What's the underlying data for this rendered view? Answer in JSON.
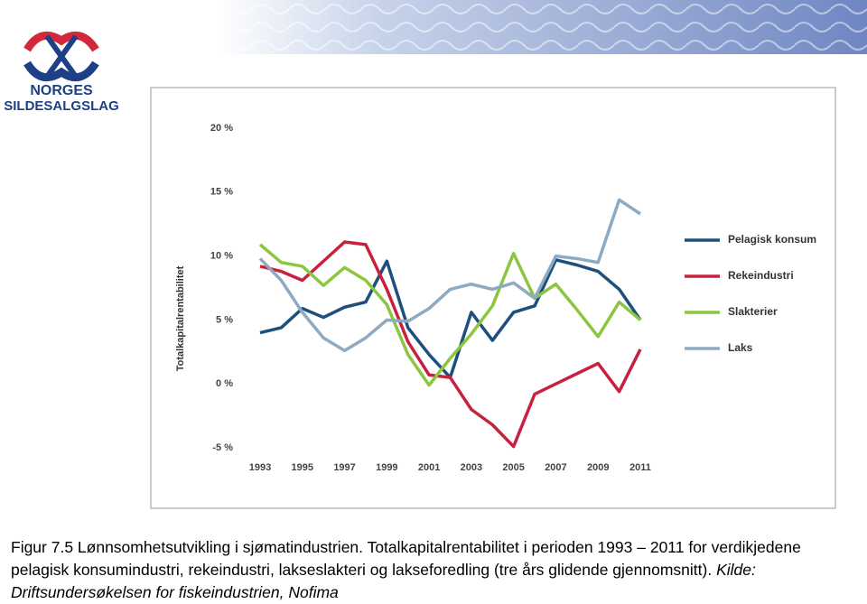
{
  "logo": {
    "line1": "NORGES",
    "line2": "SILDESALGSLAG"
  },
  "chart_data": {
    "type": "line",
    "y_label": "Totalkapitalrentabilitet",
    "x": [
      1993,
      1994,
      1995,
      1996,
      1997,
      1998,
      1999,
      2000,
      2001,
      2002,
      2003,
      2004,
      2005,
      2006,
      2007,
      2008,
      2009,
      2010,
      2011
    ],
    "xlim": [
      1993,
      2011
    ],
    "xticks": [
      1993,
      1995,
      1997,
      1999,
      2001,
      2003,
      2005,
      2007,
      2009,
      2011
    ],
    "ylim": [
      -5,
      20
    ],
    "yticks": [
      {
        "value": -5,
        "label": "-5 %"
      },
      {
        "value": 0,
        "label": "0 %"
      },
      {
        "value": 5,
        "label": "5 %"
      },
      {
        "value": 10,
        "label": "10 %"
      },
      {
        "value": 15,
        "label": "15 %"
      },
      {
        "value": 20,
        "label": "20 %"
      }
    ],
    "grid": false,
    "legend": "right",
    "series": [
      {
        "name": "Pelagisk konsum",
        "color": "#1d4f7c",
        "values": [
          4.0,
          4.4,
          5.9,
          5.2,
          6.0,
          6.4,
          9.6,
          4.4,
          2.3,
          0.5,
          5.6,
          3.4,
          5.6,
          6.1,
          9.7,
          9.3,
          8.8,
          7.4,
          5.0
        ]
      },
      {
        "name": "Rekeindustri",
        "color": "#c8213f",
        "values": [
          9.2,
          8.8,
          8.1,
          9.6,
          11.1,
          10.9,
          7.4,
          3.3,
          0.7,
          0.5,
          -2.0,
          -3.2,
          -4.9,
          -0.8,
          0.0,
          0.8,
          1.6,
          -0.6,
          2.7
        ]
      },
      {
        "name": "Slakterier",
        "color": "#8cc63f",
        "values": [
          10.9,
          9.5,
          9.2,
          7.7,
          9.1,
          8.1,
          6.2,
          2.3,
          -0.1,
          2.0,
          3.9,
          6.1,
          10.2,
          6.7,
          7.8,
          5.8,
          3.7,
          6.4,
          5.0
        ]
      },
      {
        "name": "Laks",
        "color": "#8eaac2",
        "values": [
          9.8,
          8.1,
          5.6,
          3.6,
          2.6,
          3.6,
          5.0,
          4.9,
          5.9,
          7.4,
          7.8,
          7.4,
          7.9,
          6.7,
          10.0,
          9.8,
          9.5,
          14.4,
          13.3
        ]
      }
    ]
  },
  "caption": {
    "text": "Figur 7.5 Lønnsomhetsutvikling i sjømatindustrien. Totalkapitalrentabilitet i perioden 1993 – 2011 for verdikjedene pelagisk konsumindustri, rekeindustri, lakseslakteri og lakseforedling (tre års glidende gjennomsnitt).",
    "source": "Kilde: Driftsundersøkelsen for fiskeindustrien, Nofima"
  }
}
